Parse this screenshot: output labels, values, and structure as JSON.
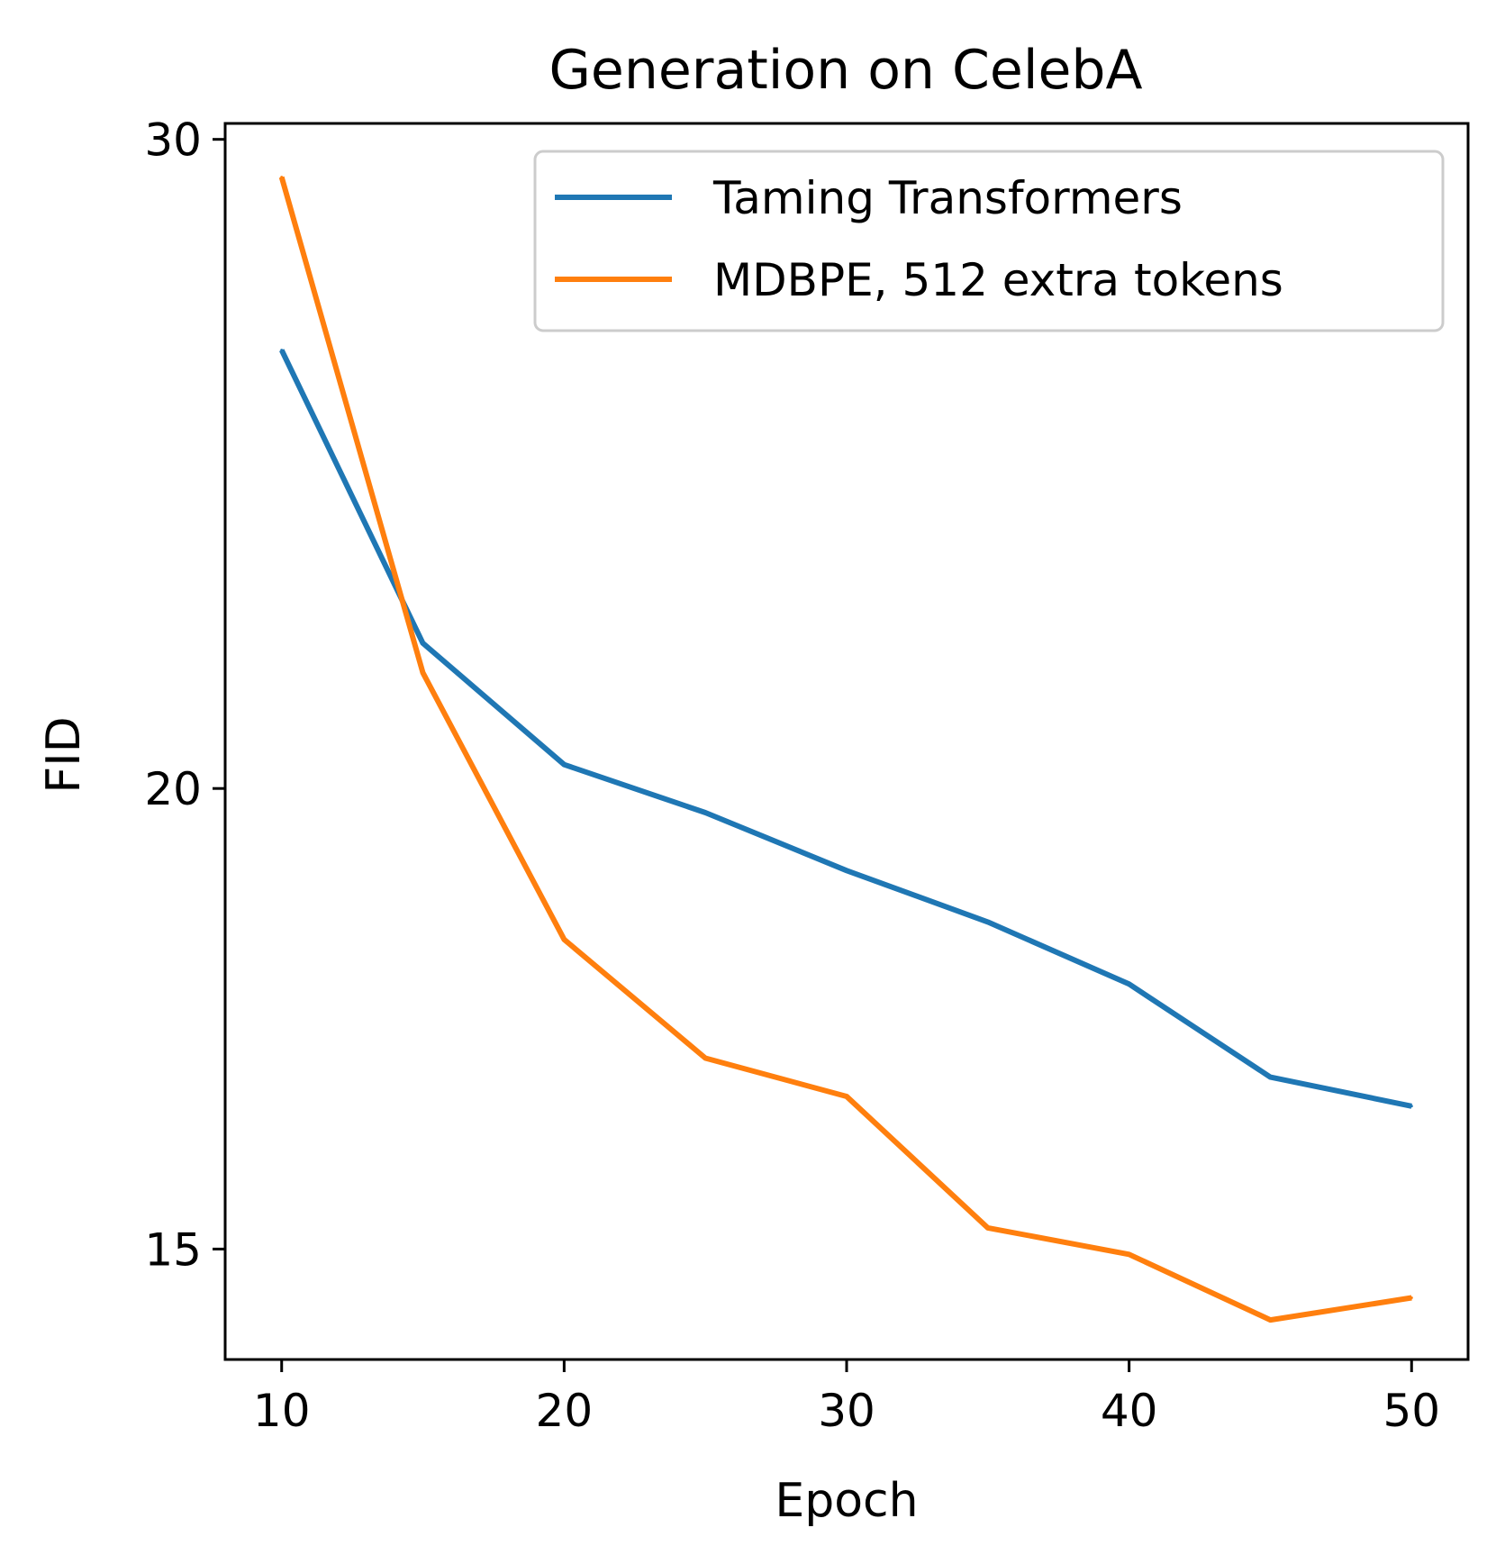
{
  "chart_data": {
    "type": "line",
    "title": "Generation on CelebA",
    "xlabel": "Epoch",
    "ylabel": "FID",
    "yscale": "log",
    "xlim": [
      8,
      52
    ],
    "ylim": [
      14.0,
      30.3
    ],
    "xticks": [
      10,
      20,
      30,
      40,
      50
    ],
    "yticks": [
      15,
      20,
      30
    ],
    "x": [
      10,
      15,
      20,
      25,
      30,
      35,
      40,
      45,
      50
    ],
    "series": [
      {
        "name": "Taming Transformers",
        "color": "#1f77b4",
        "values": [
          26.3,
          21.9,
          20.3,
          19.7,
          19.0,
          18.4,
          17.7,
          16.7,
          16.4
        ]
      },
      {
        "name": "MDBPE, 512 extra tokens",
        "color": "#ff7f0e",
        "values": [
          29.3,
          21.5,
          18.2,
          16.9,
          16.5,
          15.2,
          14.95,
          14.35,
          14.55
        ]
      }
    ],
    "legend_position": "top-right",
    "grid": false
  }
}
